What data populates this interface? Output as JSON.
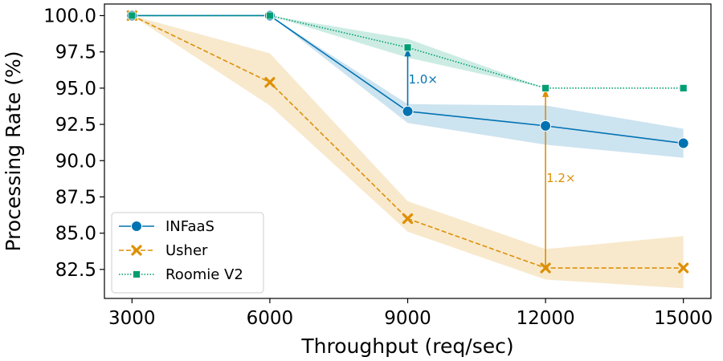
{
  "chart_data": {
    "type": "line",
    "title": "",
    "xlabel": "Throughput (req/sec)",
    "ylabel": "Processing Rate (%)",
    "x": [
      3000,
      6000,
      9000,
      12000,
      15000
    ],
    "xlim": [
      2400,
      15600
    ],
    "ylim": [
      80.5,
      100.8
    ],
    "yticks": [
      82.5,
      85.0,
      87.5,
      90.0,
      92.5,
      95.0,
      97.5,
      100.0
    ],
    "ytick_labels": [
      "82.5",
      "85.0",
      "87.5",
      "90.0",
      "92.5",
      "95.0",
      "97.5",
      "100.0"
    ],
    "xticks": [
      3000,
      6000,
      9000,
      12000,
      15000
    ],
    "xtick_labels": [
      "3000",
      "6000",
      "9000",
      "12000",
      "15000"
    ],
    "grid": false,
    "legend_position": "bottom-left",
    "series": [
      {
        "name": "INFaaS",
        "color": "#0173b2",
        "linestyle": "solid",
        "marker": "circle",
        "values": [
          100.0,
          100.0,
          93.4,
          92.4,
          91.2
        ],
        "band_low": [
          100.0,
          100.0,
          92.6,
          91.1,
          90.2
        ],
        "band_high": [
          100.0,
          100.0,
          93.9,
          93.8,
          92.2
        ]
      },
      {
        "name": "Usher",
        "color": "#de8f05",
        "linestyle": "dashed",
        "marker": "x",
        "values": [
          100.0,
          95.4,
          86.0,
          82.6,
          82.6
        ],
        "band_low": [
          100.0,
          93.8,
          85.1,
          81.8,
          81.2
        ],
        "band_high": [
          100.0,
          97.4,
          87.2,
          83.9,
          84.8
        ]
      },
      {
        "name": "Roomie V2",
        "color": "#029e73",
        "linestyle": "dotted",
        "marker": "square",
        "values": [
          100.0,
          100.0,
          97.8,
          95.0,
          95.0
        ],
        "band_low": [
          100.0,
          100.0,
          97.1,
          95.0,
          95.0
        ],
        "band_high": [
          100.0,
          100.0,
          98.4,
          95.0,
          95.0
        ]
      }
    ],
    "annotations": [
      {
        "text": "1.0×",
        "x": 9000,
        "y_from": 93.4,
        "y_to": 97.8,
        "color": "#0173b2"
      },
      {
        "text": "1.2×",
        "x": 12000,
        "y_from": 82.6,
        "y_to": 95.0,
        "color": "#de8f05"
      }
    ]
  }
}
